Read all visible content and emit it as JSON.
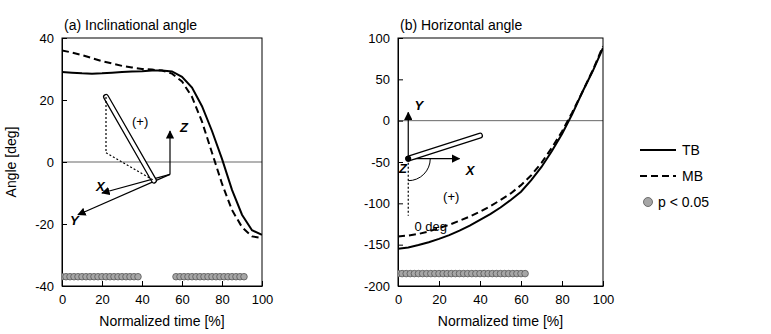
{
  "chart_data": [
    {
      "type": "line",
      "title": "(a) Inclinational angle",
      "x_label": "Normalized time [%]",
      "y_label": "Angle [deg]",
      "xlim": [
        0,
        100
      ],
      "xticks": [
        0,
        20,
        40,
        60,
        80,
        100
      ],
      "ylim": [
        -40,
        40
      ],
      "yticks": [
        -40,
        -20,
        0,
        20,
        40
      ],
      "series": [
        {
          "name": "TB",
          "color": "#000000",
          "line_style": "solid",
          "x": [
            0,
            5,
            10,
            15,
            20,
            25,
            30,
            35,
            40,
            45,
            50,
            55,
            60,
            65,
            70,
            75,
            80,
            85,
            90,
            95,
            100
          ],
          "values": [
            29,
            28.8,
            28.6,
            28.5,
            28.6,
            28.8,
            29,
            29.2,
            29.3,
            29.5,
            29.5,
            29.2,
            27.5,
            24,
            18,
            10,
            1,
            -9,
            -17,
            -22,
            -23.5
          ]
        },
        {
          "name": "MB",
          "color": "#000000",
          "line_style": "dashed",
          "x": [
            0,
            5,
            10,
            15,
            20,
            25,
            30,
            35,
            40,
            45,
            50,
            55,
            60,
            65,
            70,
            75,
            80,
            85,
            90,
            95,
            100
          ],
          "values": [
            36,
            35.3,
            34.5,
            33.5,
            32.5,
            31.8,
            31,
            30.5,
            30,
            29.8,
            29.5,
            28.5,
            26,
            21,
            13,
            3,
            -7,
            -15.5,
            -21,
            -24,
            -24.5
          ]
        },
        {
          "name": "p < 0.05",
          "type": "scatter",
          "marker": "circle",
          "color": "#a6a6a6",
          "x": [
            0,
            2,
            4,
            6,
            8,
            10,
            12,
            14,
            16,
            18,
            20,
            22,
            24,
            26,
            28,
            30,
            32,
            34,
            36,
            38,
            57,
            59,
            61,
            63,
            65,
            67,
            69,
            71,
            73,
            75,
            77,
            79,
            81,
            83,
            85,
            87,
            89,
            91
          ],
          "values": [
            -37,
            -37,
            -37,
            -37,
            -37,
            -37,
            -37,
            -37,
            -37,
            -37,
            -37,
            -37,
            -37,
            -37,
            -37,
            -37,
            -37,
            -37,
            -37,
            -37,
            -37,
            -37,
            -37,
            -37,
            -37,
            -37,
            -37,
            -37,
            -37,
            -37,
            -37,
            -37,
            -37,
            -37,
            -37,
            -37,
            -37,
            -37
          ]
        }
      ],
      "annotations": [
        {
          "text": "(+)",
          "x": 35,
          "y": 13
        },
        {
          "text": "Z",
          "x": 59,
          "y": 11
        },
        {
          "text": "X",
          "x": 17,
          "y": -8
        },
        {
          "text": "Y",
          "x": 4,
          "y": -19
        }
      ]
    },
    {
      "type": "line",
      "title": "(b) Horizontal angle",
      "x_label": "Normalized time [%]",
      "xlim": [
        0,
        100
      ],
      "xticks": [
        0,
        20,
        40,
        60,
        80,
        100
      ],
      "ylim": [
        -200,
        100
      ],
      "yticks": [
        -200,
        -150,
        -100,
        -50,
        0,
        50,
        100
      ],
      "legend": "right",
      "series": [
        {
          "name": "TB",
          "color": "#000000",
          "line_style": "solid",
          "x": [
            0,
            5,
            10,
            15,
            20,
            25,
            30,
            35,
            40,
            45,
            50,
            55,
            60,
            65,
            70,
            75,
            80,
            85,
            90,
            95,
            100
          ],
          "values": [
            -155,
            -153.5,
            -150.5,
            -147,
            -143,
            -138.5,
            -133,
            -127,
            -120,
            -113,
            -105,
            -96,
            -86,
            -72,
            -56,
            -37,
            -16,
            8,
            35,
            60,
            88
          ]
        },
        {
          "name": "MB",
          "color": "#000000",
          "line_style": "dashed",
          "x": [
            0,
            5,
            10,
            15,
            20,
            25,
            30,
            35,
            40,
            45,
            50,
            55,
            60,
            65,
            70,
            75,
            80,
            85,
            90,
            95,
            100
          ],
          "values": [
            -140,
            -139,
            -137,
            -134,
            -130,
            -126,
            -121,
            -116,
            -110,
            -103.5,
            -96,
            -88,
            -78,
            -66,
            -51,
            -33,
            -13,
            10,
            35,
            61,
            90
          ]
        },
        {
          "name": "p < 0.05",
          "type": "scatter",
          "marker": "circle",
          "color": "#a6a6a6",
          "x": [
            0,
            2,
            4,
            6,
            8,
            10,
            12,
            14,
            16,
            18,
            20,
            22,
            24,
            26,
            28,
            30,
            32,
            34,
            36,
            38,
            40,
            42,
            44,
            46,
            48,
            50,
            52,
            54,
            56,
            58,
            60,
            62
          ],
          "values": [
            -185,
            -185,
            -185,
            -185,
            -185,
            -185,
            -185,
            -185,
            -185,
            -185,
            -185,
            -185,
            -185,
            -185,
            -185,
            -185,
            -185,
            -185,
            -185,
            -185,
            -185,
            -185,
            -185,
            -185,
            -185,
            -185,
            -185,
            -185,
            -185,
            -185,
            -185,
            -185
          ]
        }
      ],
      "annotations": [
        {
          "text": "Y",
          "x": 8,
          "y": 18
        },
        {
          "text": "Z",
          "x": 0.5,
          "y": -58
        },
        {
          "text": "X",
          "x": 33,
          "y": -60
        },
        {
          "text": "(+)",
          "x": 22,
          "y": -92
        },
        {
          "text": "0 deg",
          "x": 8,
          "y": -128
        }
      ]
    }
  ]
}
